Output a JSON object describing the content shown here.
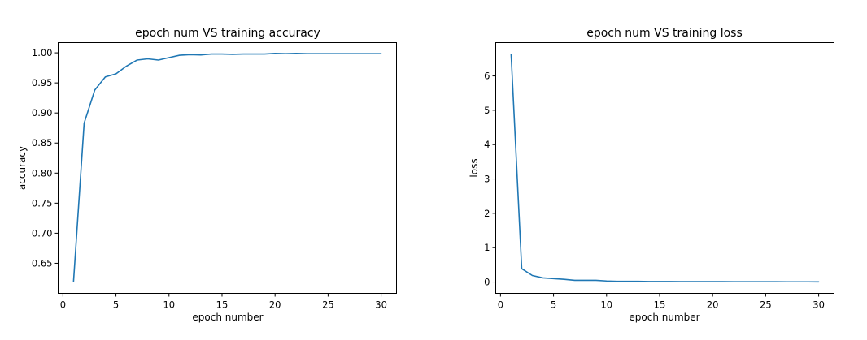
{
  "chart_data": [
    {
      "type": "line",
      "title": "epoch num VS training accuracy",
      "xlabel": "epoch number",
      "ylabel": "accuracy",
      "xlim": [
        -0.45,
        31.45
      ],
      "ylim": [
        0.6,
        1.017
      ],
      "xticks": [
        "0",
        "5",
        "10",
        "15",
        "20",
        "25",
        "30"
      ],
      "yticks": [
        "0.65",
        "0.70",
        "0.75",
        "0.80",
        "0.85",
        "0.90",
        "0.95",
        "1.00"
      ],
      "grid": false,
      "color": "#1f77b4",
      "x": [
        1,
        2,
        3,
        4,
        5,
        6,
        7,
        8,
        9,
        10,
        11,
        12,
        13,
        14,
        15,
        16,
        17,
        18,
        19,
        20,
        21,
        22,
        23,
        24,
        25,
        26,
        27,
        28,
        29,
        30
      ],
      "y": [
        0.62,
        0.883,
        0.938,
        0.96,
        0.965,
        0.978,
        0.988,
        0.99,
        0.988,
        0.992,
        0.996,
        0.997,
        0.9965,
        0.998,
        0.998,
        0.9975,
        0.998,
        0.998,
        0.998,
        0.999,
        0.9985,
        0.999,
        0.9985,
        0.9985,
        0.9985,
        0.9985,
        0.9985,
        0.9985,
        0.9985,
        0.9985
      ]
    },
    {
      "type": "line",
      "title": "epoch num VS training loss",
      "xlabel": "epoch number",
      "ylabel": "loss",
      "xlim": [
        -0.45,
        31.45
      ],
      "ylim": [
        -0.33,
        6.97
      ],
      "xticks": [
        "0",
        "5",
        "10",
        "15",
        "20",
        "25",
        "30"
      ],
      "yticks": [
        "0",
        "1",
        "2",
        "3",
        "4",
        "5",
        "6"
      ],
      "grid": false,
      "color": "#1f77b4",
      "x": [
        1,
        2,
        3,
        4,
        5,
        6,
        7,
        8,
        9,
        10,
        11,
        12,
        13,
        14,
        15,
        16,
        17,
        18,
        19,
        20,
        21,
        22,
        23,
        24,
        25,
        26,
        27,
        28,
        29,
        30
      ],
      "y": [
        6.63,
        0.39,
        0.19,
        0.12,
        0.1,
        0.08,
        0.05,
        0.05,
        0.05,
        0.03,
        0.02,
        0.02,
        0.02,
        0.015,
        0.015,
        0.015,
        0.01,
        0.01,
        0.01,
        0.01,
        0.01,
        0.008,
        0.008,
        0.008,
        0.008,
        0.008,
        0.007,
        0.007,
        0.007,
        0.006
      ]
    }
  ]
}
